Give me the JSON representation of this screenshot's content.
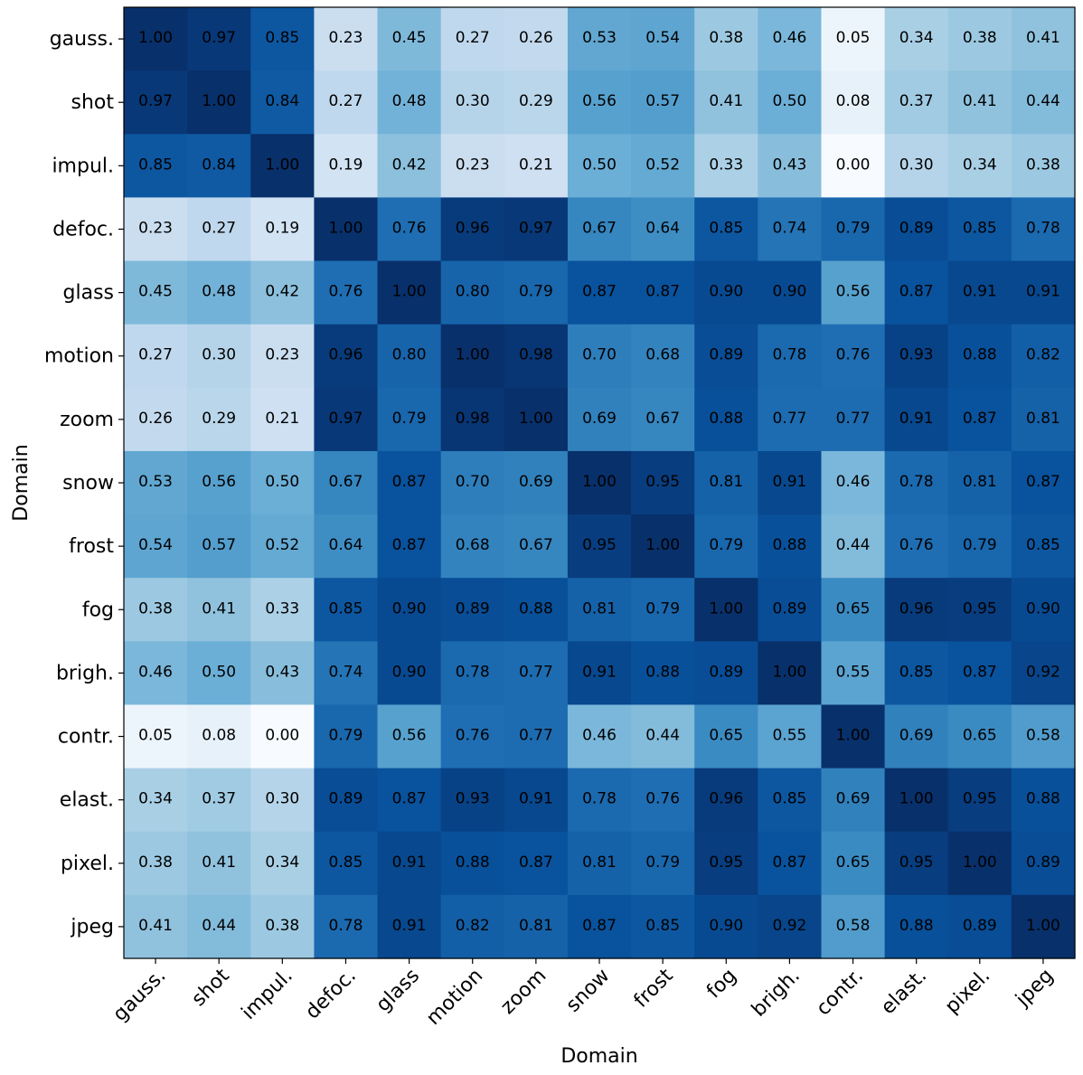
{
  "chart_data": {
    "type": "heatmap",
    "title": "",
    "xlabel": "Domain",
    "ylabel": "Domain",
    "colormap": "Blues",
    "vrange": [
      0,
      1
    ],
    "categories": [
      "gauss.",
      "shot",
      "impul.",
      "defoc.",
      "glass",
      "motion",
      "zoom",
      "snow",
      "frost",
      "fog",
      "brigh.",
      "contr.",
      "elast.",
      "pixel.",
      "jpeg"
    ],
    "values": [
      [
        1.0,
        0.97,
        0.85,
        0.23,
        0.45,
        0.27,
        0.26,
        0.53,
        0.54,
        0.38,
        0.46,
        0.05,
        0.34,
        0.38,
        0.41
      ],
      [
        0.97,
        1.0,
        0.84,
        0.27,
        0.48,
        0.3,
        0.29,
        0.56,
        0.57,
        0.41,
        0.5,
        0.08,
        0.37,
        0.41,
        0.44
      ],
      [
        0.85,
        0.84,
        1.0,
        0.19,
        0.42,
        0.23,
        0.21,
        0.5,
        0.52,
        0.33,
        0.43,
        0.0,
        0.3,
        0.34,
        0.38
      ],
      [
        0.23,
        0.27,
        0.19,
        1.0,
        0.76,
        0.96,
        0.97,
        0.67,
        0.64,
        0.85,
        0.74,
        0.79,
        0.89,
        0.85,
        0.78
      ],
      [
        0.45,
        0.48,
        0.42,
        0.76,
        1.0,
        0.8,
        0.79,
        0.87,
        0.87,
        0.9,
        0.9,
        0.56,
        0.87,
        0.91,
        0.91
      ],
      [
        0.27,
        0.3,
        0.23,
        0.96,
        0.8,
        1.0,
        0.98,
        0.7,
        0.68,
        0.89,
        0.78,
        0.76,
        0.93,
        0.88,
        0.82
      ],
      [
        0.26,
        0.29,
        0.21,
        0.97,
        0.79,
        0.98,
        1.0,
        0.69,
        0.67,
        0.88,
        0.77,
        0.77,
        0.91,
        0.87,
        0.81
      ],
      [
        0.53,
        0.56,
        0.5,
        0.67,
        0.87,
        0.7,
        0.69,
        1.0,
        0.95,
        0.81,
        0.91,
        0.46,
        0.78,
        0.81,
        0.87
      ],
      [
        0.54,
        0.57,
        0.52,
        0.64,
        0.87,
        0.68,
        0.67,
        0.95,
        1.0,
        0.79,
        0.88,
        0.44,
        0.76,
        0.79,
        0.85
      ],
      [
        0.38,
        0.41,
        0.33,
        0.85,
        0.9,
        0.89,
        0.88,
        0.81,
        0.79,
        1.0,
        0.89,
        0.65,
        0.96,
        0.95,
        0.9
      ],
      [
        0.46,
        0.5,
        0.43,
        0.74,
        0.9,
        0.78,
        0.77,
        0.91,
        0.88,
        0.89,
        1.0,
        0.55,
        0.85,
        0.87,
        0.92
      ],
      [
        0.05,
        0.08,
        0.0,
        0.79,
        0.56,
        0.76,
        0.77,
        0.46,
        0.44,
        0.65,
        0.55,
        1.0,
        0.69,
        0.65,
        0.58
      ],
      [
        0.34,
        0.37,
        0.3,
        0.89,
        0.87,
        0.93,
        0.91,
        0.78,
        0.76,
        0.96,
        0.85,
        0.69,
        1.0,
        0.95,
        0.88
      ],
      [
        0.38,
        0.41,
        0.34,
        0.85,
        0.91,
        0.88,
        0.87,
        0.81,
        0.79,
        0.95,
        0.87,
        0.65,
        0.95,
        1.0,
        0.89
      ],
      [
        0.41,
        0.44,
        0.38,
        0.78,
        0.91,
        0.82,
        0.81,
        0.87,
        0.85,
        0.9,
        0.92,
        0.58,
        0.88,
        0.89,
        1.0
      ]
    ]
  }
}
